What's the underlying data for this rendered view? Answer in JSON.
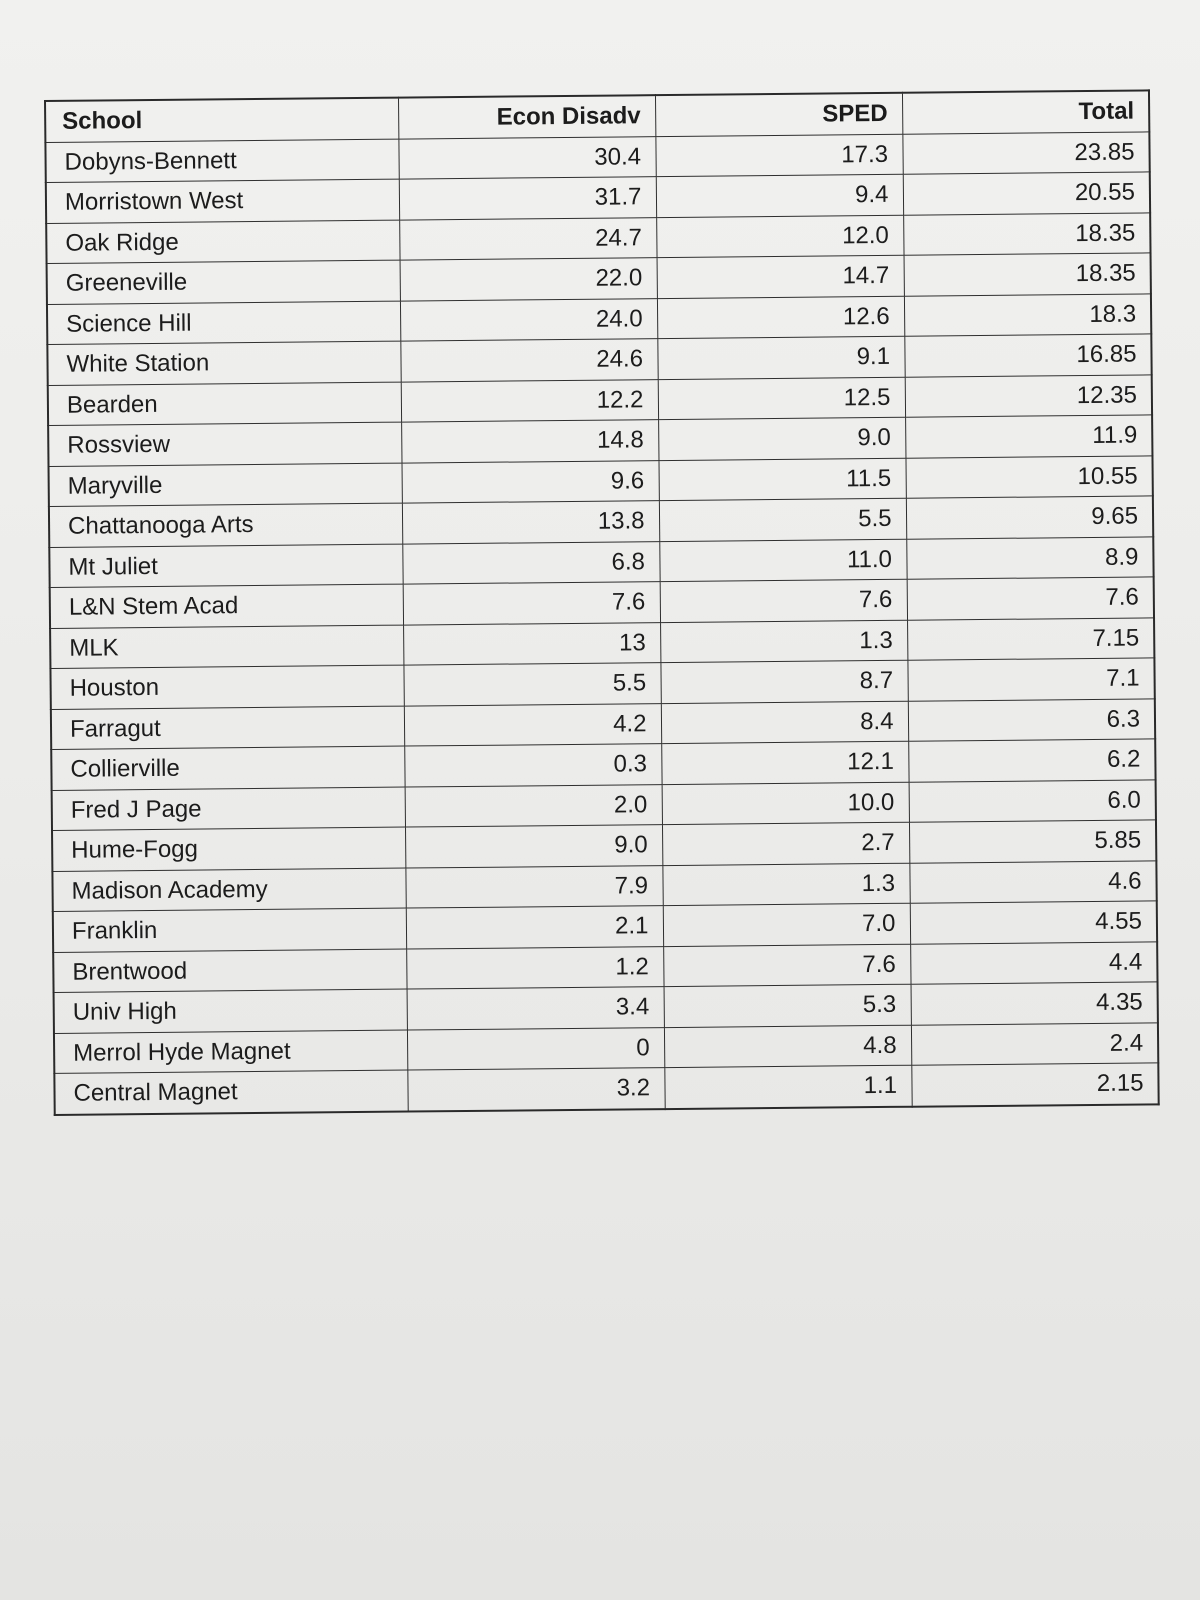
{
  "table": {
    "headers": {
      "school": "School",
      "econ": "Econ Disadv",
      "sped": "SPED",
      "total": "Total"
    },
    "rows": [
      {
        "school": "Dobyns-Bennett",
        "econ": "30.4",
        "sped": "17.3",
        "total": "23.85"
      },
      {
        "school": "Morristown West",
        "econ": "31.7",
        "sped": "9.4",
        "total": "20.55"
      },
      {
        "school": "Oak Ridge",
        "econ": "24.7",
        "sped": "12.0",
        "total": "18.35"
      },
      {
        "school": "Greeneville",
        "econ": "22.0",
        "sped": "14.7",
        "total": "18.35"
      },
      {
        "school": "Science Hill",
        "econ": "24.0",
        "sped": "12.6",
        "total": "18.3"
      },
      {
        "school": "White Station",
        "econ": "24.6",
        "sped": "9.1",
        "total": "16.85"
      },
      {
        "school": "Bearden",
        "econ": "12.2",
        "sped": "12.5",
        "total": "12.35"
      },
      {
        "school": "Rossview",
        "econ": "14.8",
        "sped": "9.0",
        "total": "11.9"
      },
      {
        "school": "Maryville",
        "econ": "9.6",
        "sped": "11.5",
        "total": "10.55"
      },
      {
        "school": "Chattanooga Arts",
        "econ": "13.8",
        "sped": "5.5",
        "total": "9.65"
      },
      {
        "school": "Mt Juliet",
        "econ": "6.8",
        "sped": "11.0",
        "total": "8.9"
      },
      {
        "school": "L&N Stem Acad",
        "econ": "7.6",
        "sped": "7.6",
        "total": "7.6"
      },
      {
        "school": "MLK",
        "econ": "13",
        "sped": "1.3",
        "total": "7.15"
      },
      {
        "school": "Houston",
        "econ": "5.5",
        "sped": "8.7",
        "total": "7.1"
      },
      {
        "school": "Farragut",
        "econ": "4.2",
        "sped": "8.4",
        "total": "6.3"
      },
      {
        "school": "Collierville",
        "econ": "0.3",
        "sped": "12.1",
        "total": "6.2"
      },
      {
        "school": "Fred J Page",
        "econ": "2.0",
        "sped": "10.0",
        "total": "6.0"
      },
      {
        "school": "Hume-Fogg",
        "econ": "9.0",
        "sped": "2.7",
        "total": "5.85"
      },
      {
        "school": "Madison Academy",
        "econ": "7.9",
        "sped": "1.3",
        "total": "4.6"
      },
      {
        "school": "Franklin",
        "econ": "2.1",
        "sped": "7.0",
        "total": "4.55"
      },
      {
        "school": "Brentwood",
        "econ": "1.2",
        "sped": "7.6",
        "total": "4.4"
      },
      {
        "school": "Univ High",
        "econ": "3.4",
        "sped": "5.3",
        "total": "4.35"
      },
      {
        "school": "Merrol Hyde Magnet",
        "econ": "0",
        "sped": "4.8",
        "total": "2.4"
      },
      {
        "school": "Central Magnet",
        "econ": "3.2",
        "sped": "1.1",
        "total": "2.15"
      }
    ]
  }
}
